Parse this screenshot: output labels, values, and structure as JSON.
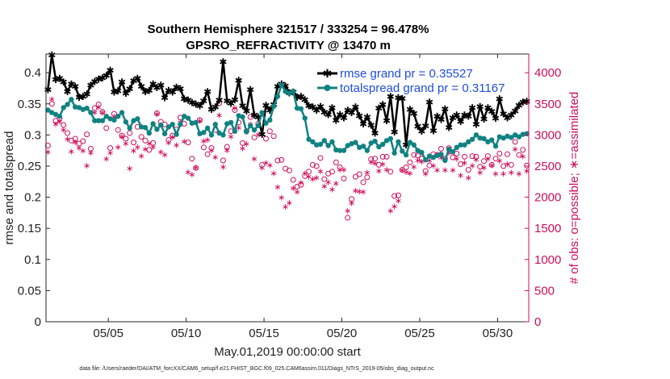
{
  "chart_data": {
    "type": "line",
    "title": "Southern Hemisphere 321517 / 333254 = 96.478%",
    "subtitle": "GPSRO_REFRACTIVITY @ 13470 m",
    "xlabel": "May.01,2019 00:00:00 start",
    "ylabel_left": "rmse and totalspread",
    "ylabel_right": "# of obs: o=possible; ∗=assimilated",
    "footnote": "data file: /Users/raeder/DAI/ATM_forcXX/CAM6_setup/f.e21.FHIST_BGC.f09_025.CAM6assim.011/Diags_NTrS_2019-05/obs_diag_output.nc",
    "xlim": [
      1.0,
      32.0
    ],
    "ylim_left": [
      0,
      0.43
    ],
    "ylim_right": [
      0,
      4300
    ],
    "x_ticks": [
      5,
      10,
      15,
      20,
      25,
      30
    ],
    "x_tick_labels": [
      "05/05",
      "05/10",
      "05/15",
      "05/20",
      "05/25",
      "05/30"
    ],
    "y_left_ticks": [
      0,
      0.05,
      0.1,
      0.15,
      0.2,
      0.25,
      0.3,
      0.35,
      0.4
    ],
    "y_left_tick_labels": [
      "0",
      "0.05",
      "0.1",
      "0.15",
      "0.2",
      "0.25",
      "0.3",
      "0.35",
      "0.4"
    ],
    "y_right_ticks": [
      0,
      500,
      1000,
      1500,
      2000,
      2500,
      3000,
      3500,
      4000
    ],
    "y_right_tick_labels": [
      "0",
      "500",
      "1000",
      "1500",
      "2000",
      "2500",
      "3000",
      "3500",
      "4000"
    ],
    "grid": false,
    "legend_position": "top-right",
    "x": [
      1.125,
      1.375,
      1.625,
      1.875,
      2.125,
      2.375,
      2.625,
      2.875,
      3.125,
      3.375,
      3.625,
      3.875,
      4.125,
      4.375,
      4.625,
      4.875,
      5.125,
      5.375,
      5.625,
      5.875,
      6.125,
      6.375,
      6.625,
      6.875,
      7.125,
      7.375,
      7.625,
      7.875,
      8.125,
      8.375,
      8.625,
      8.875,
      9.125,
      9.375,
      9.625,
      9.875,
      10.125,
      10.375,
      10.625,
      10.875,
      11.125,
      11.375,
      11.625,
      11.875,
      12.125,
      12.375,
      12.625,
      12.875,
      13.125,
      13.375,
      13.625,
      13.875,
      14.125,
      14.375,
      14.625,
      14.875,
      15.125,
      15.375,
      15.625,
      15.875,
      16.125,
      16.375,
      16.625,
      16.875,
      17.125,
      17.375,
      17.625,
      17.875,
      18.125,
      18.375,
      18.625,
      18.875,
      19.125,
      19.375,
      19.625,
      19.875,
      20.125,
      20.375,
      20.625,
      20.875,
      21.125,
      21.375,
      21.625,
      21.875,
      22.125,
      22.375,
      22.625,
      22.875,
      23.125,
      23.375,
      23.625,
      23.875,
      24.125,
      24.375,
      24.625,
      24.875,
      25.125,
      25.375,
      25.625,
      25.875,
      26.125,
      26.375,
      26.625,
      26.875,
      27.125,
      27.375,
      27.625,
      27.875,
      28.125,
      28.375,
      28.625,
      28.875,
      29.125,
      29.375,
      29.625,
      29.875,
      30.125,
      30.375,
      30.625,
      30.875,
      31.125,
      31.375,
      31.625,
      31.875
    ],
    "series": [
      {
        "name": "rmse grand pr = 0.35527",
        "axis": "left",
        "color": "#000000",
        "marker": "star",
        "values": [
          0.373,
          0.429,
          0.389,
          0.391,
          0.385,
          0.37,
          0.382,
          0.378,
          0.361,
          0.362,
          0.366,
          0.38,
          0.386,
          0.39,
          0.392,
          0.396,
          0.404,
          0.369,
          0.371,
          0.385,
          0.367,
          0.374,
          0.387,
          0.391,
          0.378,
          0.37,
          0.372,
          0.382,
          0.376,
          0.38,
          0.36,
          0.372,
          0.369,
          0.377,
          0.374,
          0.358,
          0.356,
          0.352,
          0.35,
          0.347,
          0.355,
          0.37,
          0.341,
          0.345,
          0.356,
          0.418,
          0.355,
          0.351,
          0.357,
          0.388,
          0.347,
          0.339,
          0.373,
          0.332,
          0.329,
          0.301,
          0.348,
          0.34,
          0.349,
          0.378,
          0.382,
          0.379,
          0.368,
          0.369,
          0.361,
          0.362,
          0.357,
          0.347,
          0.345,
          0.34,
          0.346,
          0.337,
          0.333,
          0.344,
          0.324,
          0.333,
          0.328,
          0.34,
          0.336,
          0.345,
          0.331,
          0.318,
          0.329,
          0.316,
          0.303,
          0.343,
          0.349,
          0.323,
          0.362,
          0.305,
          0.36,
          0.359,
          0.284,
          0.341,
          0.335,
          0.314,
          0.306,
          0.315,
          0.353,
          0.307,
          0.33,
          0.325,
          0.342,
          0.312,
          0.328,
          0.332,
          0.322,
          0.332,
          0.33,
          0.344,
          0.317,
          0.346,
          0.326,
          0.344,
          0.338,
          0.327,
          0.358,
          0.334,
          0.328,
          0.332,
          0.339,
          0.348,
          0.353,
          0.354
        ]
      },
      {
        "name": "totalspread grand pr = 0.31167",
        "axis": "left",
        "color": "#118282",
        "marker": "dot",
        "values": [
          0.34,
          0.336,
          0.333,
          0.33,
          0.344,
          0.349,
          0.357,
          0.345,
          0.344,
          0.341,
          0.343,
          0.336,
          0.323,
          0.323,
          0.323,
          0.33,
          0.326,
          0.324,
          0.33,
          0.336,
          0.321,
          0.311,
          0.323,
          0.326,
          0.313,
          0.312,
          0.303,
          0.318,
          0.309,
          0.316,
          0.302,
          0.313,
          0.317,
          0.301,
          0.317,
          0.33,
          0.327,
          0.319,
          0.32,
          0.302,
          0.304,
          0.311,
          0.3,
          0.317,
          0.303,
          0.3,
          0.318,
          0.32,
          0.306,
          0.331,
          0.329,
          0.305,
          0.315,
          0.308,
          0.315,
          0.336,
          0.319,
          0.324,
          0.346,
          0.362,
          0.38,
          0.37,
          0.367,
          0.37,
          0.343,
          0.342,
          0.327,
          0.293,
          0.289,
          0.284,
          0.285,
          0.291,
          0.283,
          0.289,
          0.276,
          0.275,
          0.275,
          0.283,
          0.286,
          0.288,
          0.28,
          0.282,
          0.275,
          0.287,
          0.29,
          0.281,
          0.285,
          0.291,
          0.294,
          0.271,
          0.289,
          0.274,
          0.268,
          0.288,
          0.284,
          0.275,
          0.272,
          0.26,
          0.266,
          0.264,
          0.267,
          0.269,
          0.259,
          0.277,
          0.273,
          0.28,
          0.284,
          0.284,
          0.289,
          0.293,
          0.3,
          0.295,
          0.294,
          0.289,
          0.292,
          0.282,
          0.297,
          0.295,
          0.298,
          0.296,
          0.3,
          0.297,
          0.301,
          0.302
        ]
      },
      {
        "name": "possible",
        "axis": "right",
        "color": "#cc0e5c",
        "marker": "circle",
        "values": [
          2830,
          3500,
          3230,
          3270,
          3160,
          3030,
          2910,
          2940,
          2860,
          2900,
          3010,
          2780,
          3430,
          3490,
          3370,
          3110,
          2790,
          3340,
          3080,
          2990,
          2940,
          3030,
          2880,
          3130,
          2970,
          2910,
          2760,
          2870,
          3350,
          3210,
          3170,
          2920,
          2990,
          3090,
          3280,
          3180,
          2880,
          2620,
          2470,
          3240,
          2800,
          2690,
          2790,
          3080,
          3510,
          2590,
          2810,
          3060,
          3400,
          3200,
          2870,
          3060,
          3290,
          2960,
          3180,
          2520,
          2940,
          3060,
          2980,
          2590,
          2600,
          2460,
          2430,
          2280,
          2170,
          2200,
          2340,
          2410,
          2520,
          2500,
          2630,
          2290,
          2380,
          2410,
          2560,
          2480,
          2300,
          1670,
          1970,
          2330,
          2370,
          2240,
          2320,
          2610,
          2620,
          2520,
          2650,
          2650,
          2410,
          2020,
          2030,
          2440,
          2480,
          2560,
          2680,
          2670,
          2620,
          2420,
          2510,
          2690,
          2680,
          2780,
          2620,
          2790,
          2640,
          2700,
          2530,
          2650,
          2440,
          2660,
          2650,
          2490,
          2580,
          2660,
          2520,
          2620,
          2700,
          2500,
          2690,
          2520,
          2890,
          2680,
          2760,
          2510
        ]
      },
      {
        "name": "assimilated",
        "axis": "right",
        "color": "#cc0e5c",
        "marker": "star",
        "values": [
          2730,
          3580,
          3180,
          3220,
          3090,
          2940,
          2740,
          2890,
          2800,
          2750,
          2510,
          2720,
          3370,
          3450,
          3370,
          2620,
          2720,
          3300,
          2810,
          2980,
          2870,
          2470,
          2750,
          2810,
          2670,
          2780,
          2870,
          2810,
          3340,
          2730,
          2690,
          2880,
          2970,
          2840,
          3210,
          2900,
          2410,
          2370,
          2480,
          3230,
          2910,
          2930,
          2760,
          2650,
          3320,
          2490,
          2760,
          2980,
          3440,
          3120,
          2790,
          2860,
          3180,
          2620,
          3010,
          2480,
          2560,
          2520,
          2390,
          2170,
          2000,
          1850,
          1920,
          2150,
          2090,
          2240,
          2390,
          2340,
          2300,
          2320,
          2420,
          2180,
          2250,
          2130,
          2230,
          2450,
          2450,
          1790,
          1910,
          2110,
          2100,
          2090,
          2400,
          2570,
          2550,
          2430,
          2540,
          2450,
          1790,
          1860,
          1950,
          2440,
          2410,
          2390,
          2490,
          2600,
          2580,
          2380,
          2600,
          2510,
          2440,
          2640,
          2440,
          2720,
          2440,
          2620,
          2360,
          2560,
          2320,
          2510,
          2610,
          2400,
          2480,
          2620,
          2520,
          2380,
          2590,
          2380,
          2540,
          2400,
          2780,
          2380,
          2660,
          2430
        ]
      }
    ]
  }
}
